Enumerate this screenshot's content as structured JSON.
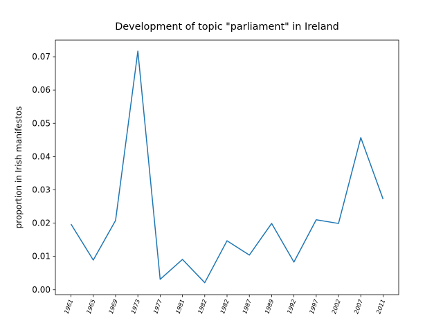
{
  "chart_data": {
    "type": "line",
    "title": "Development of topic \"parliament\" in Ireland",
    "y_label": "proportion in Irish manifestos",
    "categories": [
      "1961",
      "1965",
      "1969",
      "1973",
      "1977",
      "1981",
      "1982",
      "1982",
      "1987",
      "1989",
      "1992",
      "1997",
      "2002",
      "2007",
      "2011"
    ],
    "values": [
      0.0197,
      0.0089,
      0.0208,
      0.0717,
      0.0031,
      0.0091,
      0.0021,
      0.0147,
      0.0104,
      0.0199,
      0.0083,
      0.021,
      0.0199,
      0.0457,
      0.0272
    ],
    "color": "#1f77b4",
    "ylim": [
      -0.0015,
      0.075
    ],
    "yticks": [
      {
        "value": 0,
        "label": "0.00"
      },
      {
        "value": 0.01,
        "label": "0.01"
      },
      {
        "value": 0.02,
        "label": "0.02"
      },
      {
        "value": 0.03,
        "label": "0.03"
      },
      {
        "value": 0.04,
        "label": "0.04"
      },
      {
        "value": 0.05,
        "label": "0.05"
      },
      {
        "value": 0.06,
        "label": "0.06"
      },
      {
        "value": 0.07,
        "label": "0.07"
      }
    ],
    "grid": false
  }
}
